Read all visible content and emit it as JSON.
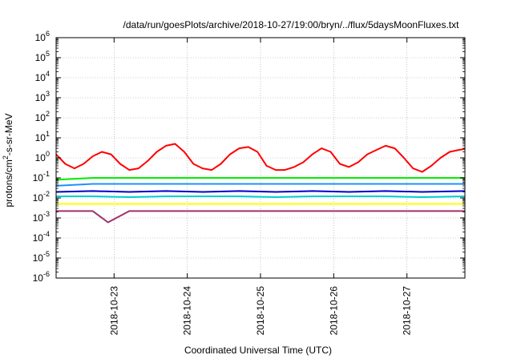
{
  "chart_data": {
    "type": "line",
    "title": "/data/run/goesPlots/archive/2018-10-27/19:00/bryn/../flux/5daysMoonFluxes.txt",
    "xlabel": "Coordinated Universal Time (UTC)",
    "ylabel": "protons/cm²-s-sr-MeV",
    "yscale": "log",
    "ylim": [
      1e-06,
      1000000.0
    ],
    "xlim": [
      "2018-10-22T05:00",
      "2018-10-27T19:00"
    ],
    "x_ticks": [
      "2018-10-23",
      "2018-10-24",
      "2018-10-25",
      "2018-10-26",
      "2018-10-27"
    ],
    "y_ticks": [
      {
        "base": "10",
        "exp": "-6"
      },
      {
        "base": "10",
        "exp": "-5"
      },
      {
        "base": "10",
        "exp": "-4"
      },
      {
        "base": "10",
        "exp": "-3"
      },
      {
        "base": "10",
        "exp": "-2"
      },
      {
        "base": "10",
        "exp": "-1"
      },
      {
        "base": "10",
        "exp": "0"
      },
      {
        "base": "10",
        "exp": "1"
      },
      {
        "base": "10",
        "exp": "2"
      },
      {
        "base": "10",
        "exp": "3"
      },
      {
        "base": "10",
        "exp": "4"
      },
      {
        "base": "10",
        "exp": "5"
      },
      {
        "base": "10",
        "exp": "6"
      }
    ],
    "grid": true,
    "legend": "none",
    "series": [
      {
        "color": "#ff0000",
        "x": [
          "2018-10-22T05:00",
          "2018-10-22T08:00",
          "2018-10-22T11:00",
          "2018-10-22T14:00",
          "2018-10-22T17:00",
          "2018-10-22T20:00",
          "2018-10-22T23:00",
          "2018-10-23T02:00",
          "2018-10-23T05:00",
          "2018-10-23T08:00",
          "2018-10-23T11:00",
          "2018-10-23T14:00",
          "2018-10-23T17:00",
          "2018-10-23T20:00",
          "2018-10-23T23:00",
          "2018-10-24T02:00",
          "2018-10-24T05:00",
          "2018-10-24T08:00",
          "2018-10-24T11:00",
          "2018-10-24T14:00",
          "2018-10-24T17:00",
          "2018-10-24T20:00",
          "2018-10-24T23:00",
          "2018-10-25T02:00",
          "2018-10-25T05:00",
          "2018-10-25T08:00",
          "2018-10-25T11:00",
          "2018-10-25T14:00",
          "2018-10-25T17:00",
          "2018-10-25T20:00",
          "2018-10-25T23:00",
          "2018-10-26T02:00",
          "2018-10-26T05:00",
          "2018-10-26T08:00",
          "2018-10-26T11:00",
          "2018-10-26T14:00",
          "2018-10-26T17:00",
          "2018-10-26T20:00",
          "2018-10-26T23:00",
          "2018-10-27T02:00",
          "2018-10-27T05:00",
          "2018-10-27T08:00",
          "2018-10-27T11:00",
          "2018-10-27T14:00",
          "2018-10-27T17:00",
          "2018-10-27T19:00"
        ],
        "values": [
          1.5,
          0.5,
          0.3,
          0.5,
          1.2,
          2.0,
          1.5,
          0.5,
          0.25,
          0.3,
          0.7,
          2.0,
          4.0,
          5.0,
          2.0,
          0.5,
          0.3,
          0.25,
          0.5,
          1.5,
          3.0,
          3.5,
          2.0,
          0.4,
          0.25,
          0.25,
          0.35,
          0.6,
          1.5,
          3.0,
          2.0,
          0.5,
          0.35,
          0.6,
          1.5,
          2.5,
          4.0,
          3.0,
          1.0,
          0.3,
          0.2,
          0.4,
          1.0,
          2.0,
          2.5,
          2.8
        ]
      },
      {
        "color": "#00ee00",
        "x": [
          "2018-10-22T05:00",
          "2018-10-22T17:00",
          "2018-10-23T05:00",
          "2018-10-23T17:00",
          "2018-10-24T05:00",
          "2018-10-24T17:00",
          "2018-10-25T05:00",
          "2018-10-25T17:00",
          "2018-10-26T05:00",
          "2018-10-26T17:00",
          "2018-10-27T05:00",
          "2018-10-27T19:00"
        ],
        "values": [
          0.08,
          0.1,
          0.1,
          0.1,
          0.1,
          0.1,
          0.1,
          0.1,
          0.1,
          0.1,
          0.1,
          0.1
        ]
      },
      {
        "color": "#1e90ff",
        "x": [
          "2018-10-22T05:00",
          "2018-10-22T17:00",
          "2018-10-23T05:00",
          "2018-10-23T17:00",
          "2018-10-24T05:00",
          "2018-10-24T17:00",
          "2018-10-25T05:00",
          "2018-10-25T17:00",
          "2018-10-26T05:00",
          "2018-10-26T17:00",
          "2018-10-27T05:00",
          "2018-10-27T19:00"
        ],
        "values": [
          0.04,
          0.05,
          0.05,
          0.05,
          0.05,
          0.05,
          0.05,
          0.05,
          0.05,
          0.05,
          0.05,
          0.05
        ]
      },
      {
        "color": "#0000cd",
        "x": [
          "2018-10-22T05:00",
          "2018-10-22T17:00",
          "2018-10-23T05:00",
          "2018-10-23T17:00",
          "2018-10-24T05:00",
          "2018-10-24T17:00",
          "2018-10-25T05:00",
          "2018-10-25T17:00",
          "2018-10-26T05:00",
          "2018-10-26T17:00",
          "2018-10-27T05:00",
          "2018-10-27T19:00"
        ],
        "values": [
          0.02,
          0.022,
          0.02,
          0.022,
          0.02,
          0.022,
          0.02,
          0.022,
          0.02,
          0.022,
          0.02,
          0.022
        ]
      },
      {
        "color": "#00ced1",
        "x": [
          "2018-10-22T05:00",
          "2018-10-22T17:00",
          "2018-10-23T05:00",
          "2018-10-23T17:00",
          "2018-10-24T05:00",
          "2018-10-24T17:00",
          "2018-10-25T05:00",
          "2018-10-25T17:00",
          "2018-10-26T05:00",
          "2018-10-26T17:00",
          "2018-10-27T05:00",
          "2018-10-27T19:00"
        ],
        "values": [
          0.012,
          0.012,
          0.011,
          0.012,
          0.012,
          0.012,
          0.011,
          0.012,
          0.012,
          0.012,
          0.011,
          0.012
        ]
      },
      {
        "color": "#ffff00",
        "x": [
          "2018-10-22T05:00",
          "2018-10-22T17:00",
          "2018-10-23T05:00",
          "2018-10-23T17:00",
          "2018-10-24T05:00",
          "2018-10-24T17:00",
          "2018-10-25T05:00",
          "2018-10-25T17:00",
          "2018-10-26T05:00",
          "2018-10-26T17:00",
          "2018-10-27T05:00",
          "2018-10-27T19:00"
        ],
        "values": [
          0.005,
          0.005,
          0.005,
          0.005,
          0.005,
          0.005,
          0.005,
          0.005,
          0.005,
          0.005,
          0.005,
          0.005
        ]
      },
      {
        "color": "#a0306e",
        "x": [
          "2018-10-22T05:00",
          "2018-10-22T17:00",
          "2018-10-22T22:00",
          "2018-10-23T05:00",
          "2018-10-23T17:00",
          "2018-10-24T05:00",
          "2018-10-24T17:00",
          "2018-10-25T05:00",
          "2018-10-25T17:00",
          "2018-10-26T05:00",
          "2018-10-26T17:00",
          "2018-10-27T05:00",
          "2018-10-27T19:00"
        ],
        "values": [
          0.0022,
          0.0022,
          0.0006,
          0.0022,
          0.0022,
          0.0022,
          0.0022,
          0.0022,
          0.0022,
          0.0022,
          0.0022,
          0.0022,
          0.0022
        ]
      }
    ]
  }
}
